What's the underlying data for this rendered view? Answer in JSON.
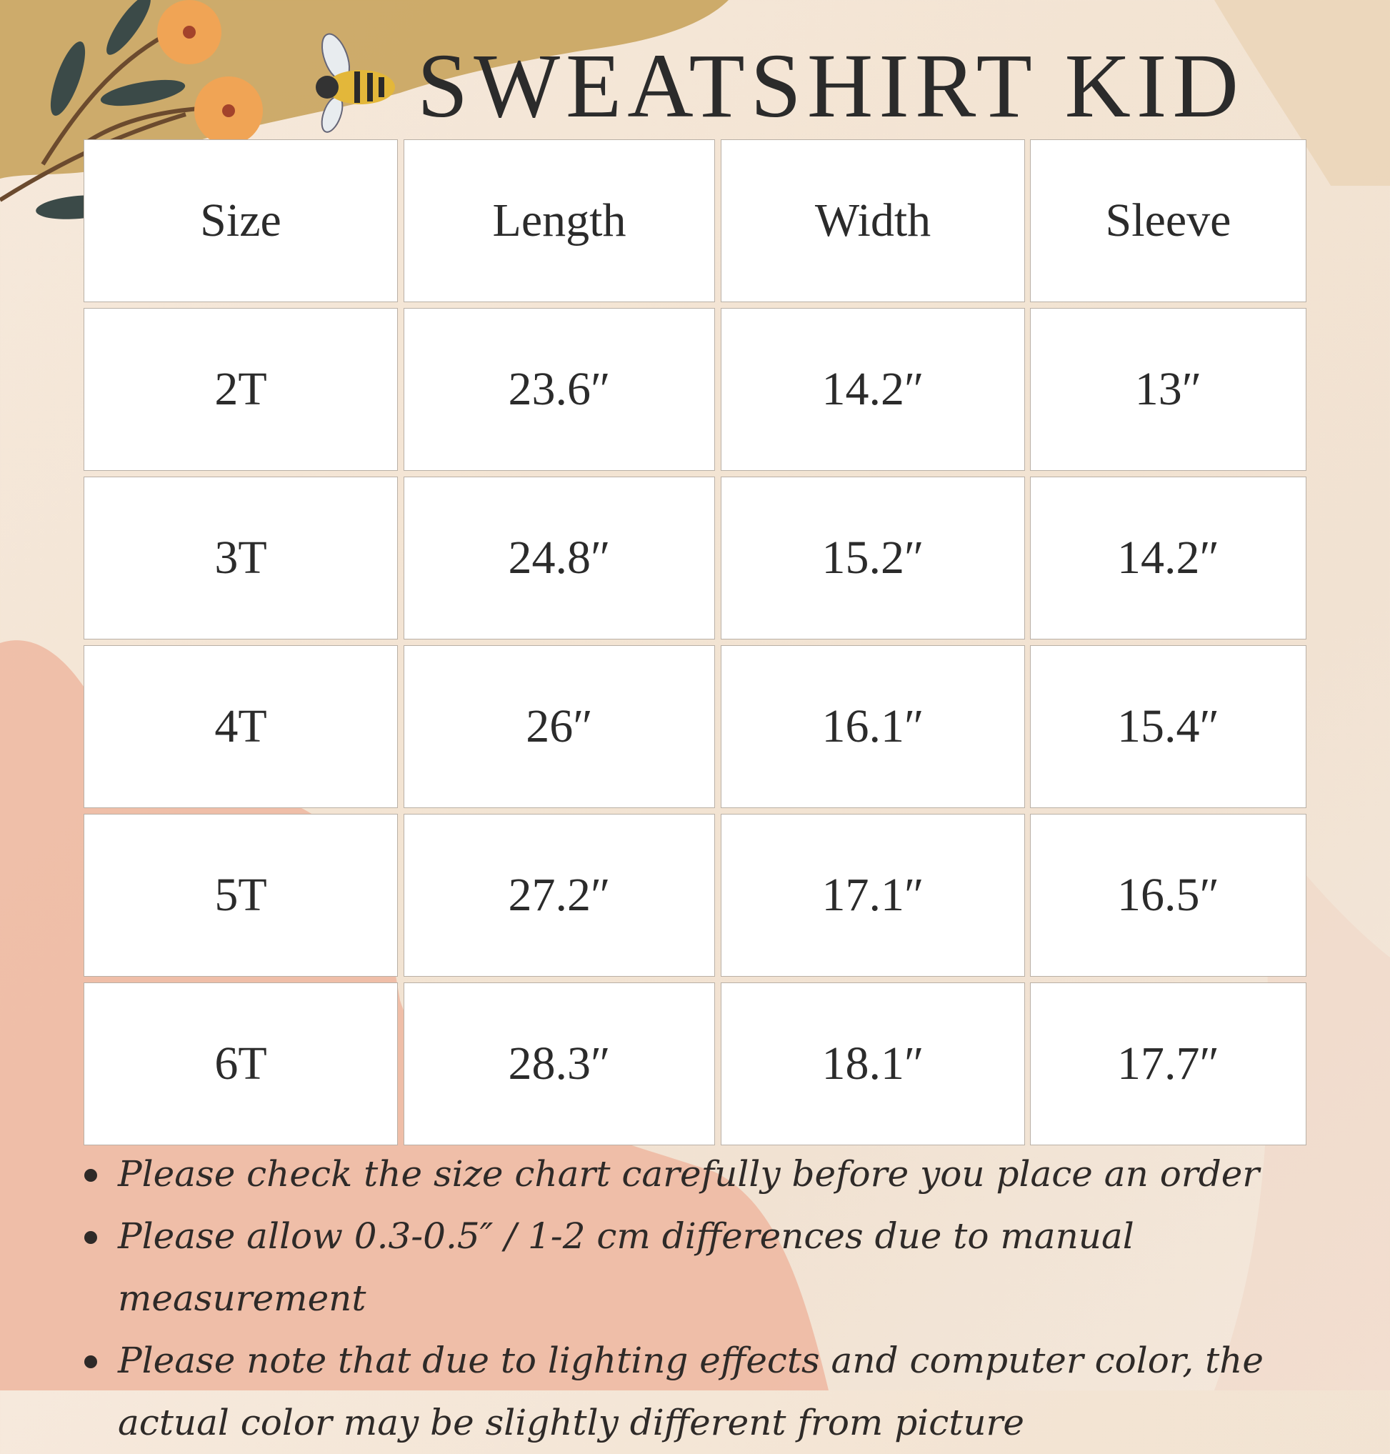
{
  "title": "SWEATSHIRT KID",
  "colors": {
    "background": "#f3e6d8",
    "gold_brush": "#c9a45e",
    "peach_brush": "#eeb29a",
    "flower": "#f0a455",
    "leaf": "#3b4a48",
    "text": "#2b2b2b"
  },
  "icons": [
    "flower-branch-icon",
    "bee-icon"
  ],
  "table": {
    "headers": [
      "Size",
      "Length",
      "Width",
      "Sleeve"
    ],
    "rows": [
      [
        "2T",
        "23.6″",
        "14.2″",
        "13″"
      ],
      [
        "3T",
        "24.8″",
        "15.2″",
        "14.2″"
      ],
      [
        "4T",
        "26″",
        "16.1″",
        "15.4″"
      ],
      [
        "5T",
        "27.2″",
        "17.1″",
        "16.5″"
      ],
      [
        "6T",
        "28.3″",
        "18.1″",
        "17.7″"
      ]
    ]
  },
  "notes": [
    "Please check the size chart carefully before you place an order",
    "Please allow 0.3-0.5″ / 1-2 cm differences due to manual measurement",
    "Please note that due to lighting effects and computer color, the actual color may be slightly different from picture"
  ]
}
